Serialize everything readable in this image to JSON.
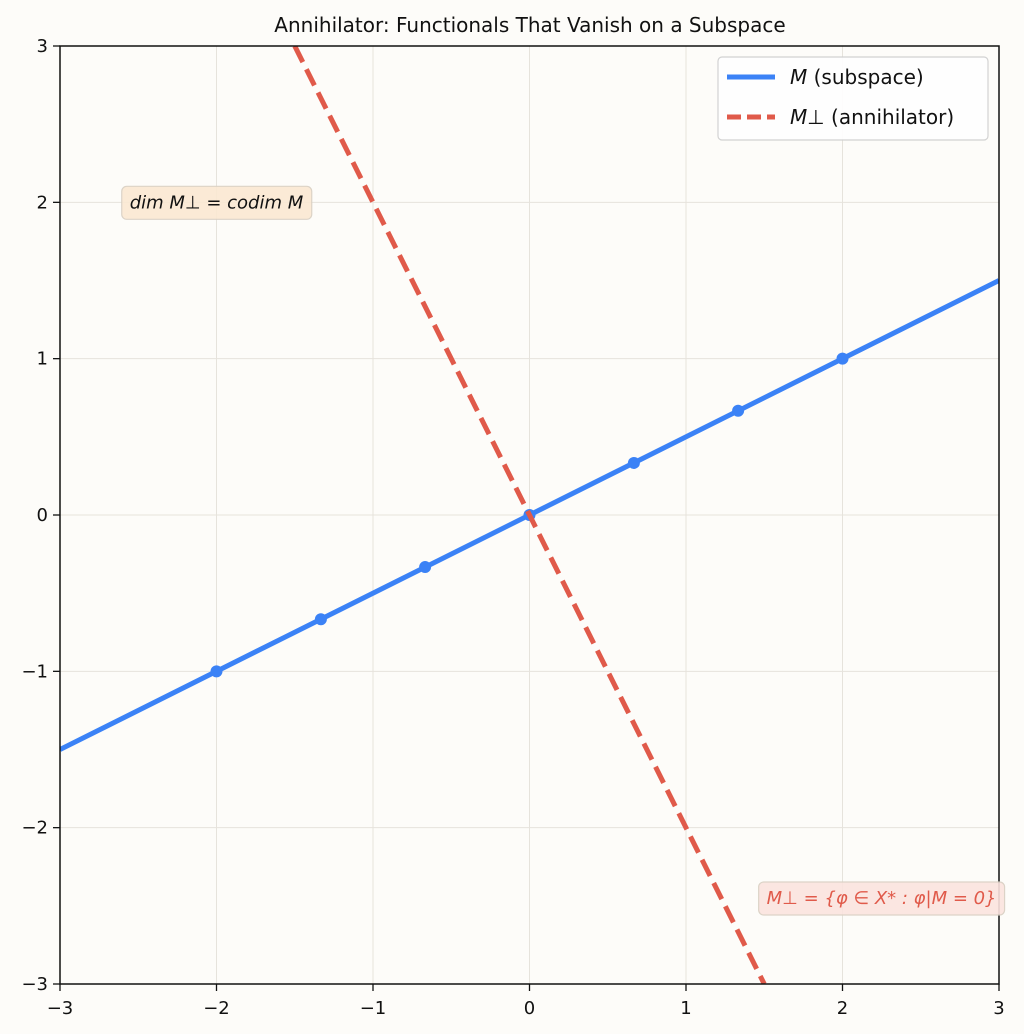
{
  "chart_data": {
    "type": "line",
    "title": "Annihilator: Functionals That Vanish on a Subspace",
    "xlabel": "",
    "ylabel": "",
    "xlim": [
      -3,
      3
    ],
    "ylim": [
      -3,
      3
    ],
    "grid": true,
    "legend_position": "top-right",
    "x_ticks": [
      -3,
      -2,
      -1,
      0,
      1,
      2,
      3
    ],
    "y_ticks": [
      -3,
      -2,
      -1,
      0,
      1,
      2,
      3
    ],
    "x_tick_labels": [
      "−3",
      "−2",
      "−1",
      "0",
      "1",
      "2",
      "3"
    ],
    "y_tick_labels": [
      "−3",
      "−2",
      "−1",
      "0",
      "1",
      "2",
      "3"
    ],
    "series": [
      {
        "name_math": "M",
        "name_text": " (subspace)",
        "color": "#3b82f6",
        "style": "solid",
        "line": [
          [
            -3,
            -1.5
          ],
          [
            3,
            1.5
          ]
        ],
        "points": [
          [
            -2,
            -1
          ],
          [
            -1.333,
            -0.667
          ],
          [
            -0.667,
            -0.333
          ],
          [
            0,
            0
          ],
          [
            0.667,
            0.333
          ],
          [
            1.333,
            0.667
          ],
          [
            2,
            1
          ]
        ]
      },
      {
        "name_math": "M⊥",
        "name_text": " (annihilator)",
        "color": "#e05a4a",
        "style": "dashed",
        "line": [
          [
            -1.5,
            3
          ],
          [
            1.5,
            -3
          ]
        ],
        "points": []
      }
    ],
    "annotations": [
      {
        "text": "dim M⊥ = codim M",
        "x": -2,
        "y": 2,
        "color": "#111111",
        "box": "#fbe9d3"
      },
      {
        "text": "M⊥ = {φ ∈ X* : φ|M = 0}",
        "x": 2.25,
        "y": -2.45,
        "color": "#e05a4a",
        "box": "#fbe4df"
      }
    ]
  }
}
